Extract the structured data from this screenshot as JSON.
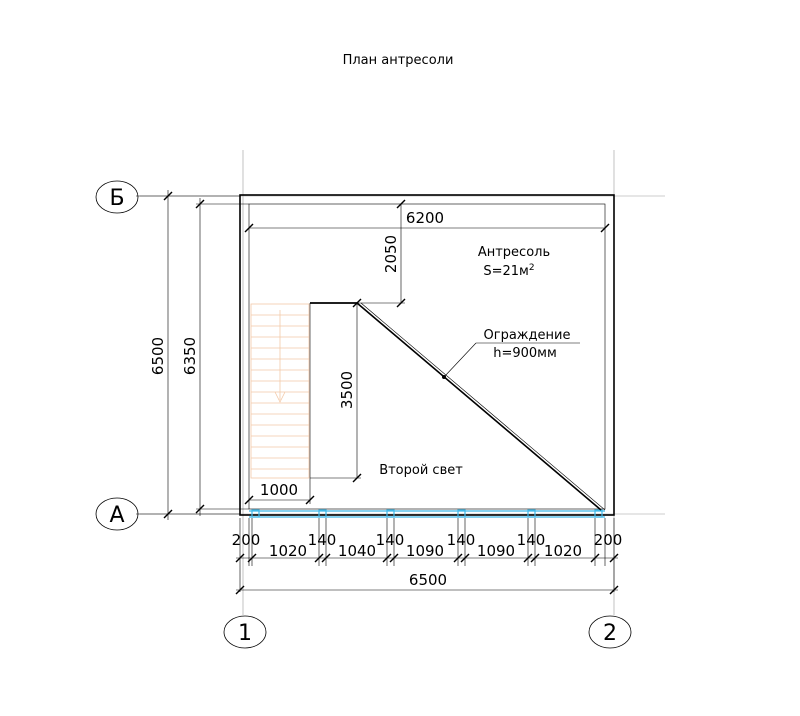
{
  "title": "План антресоли",
  "axes": {
    "b": "Б",
    "a": "А",
    "one": "1",
    "two": "2"
  },
  "rooms": {
    "mezzanine_name": "Антресоль",
    "mezzanine_area": "S=21м",
    "mezzanine_area_sup": "2",
    "second_light": "Второй свет"
  },
  "railing": {
    "label": "Ограждение",
    "height": "h=900мм"
  },
  "dims": {
    "inner_width": "6200",
    "top_gap": "2050",
    "stair_len": "3500",
    "stair_width": "1000",
    "overall_h": "6500",
    "inner_h": "6350",
    "overall_w": "6500",
    "bottom": [
      "200",
      "1020",
      "140",
      "1040",
      "140",
      "1090",
      "140",
      "1090",
      "140",
      "1020",
      "200"
    ]
  },
  "colors": {
    "stairs": "#f3c9a8",
    "window": "#3fb8e8"
  }
}
